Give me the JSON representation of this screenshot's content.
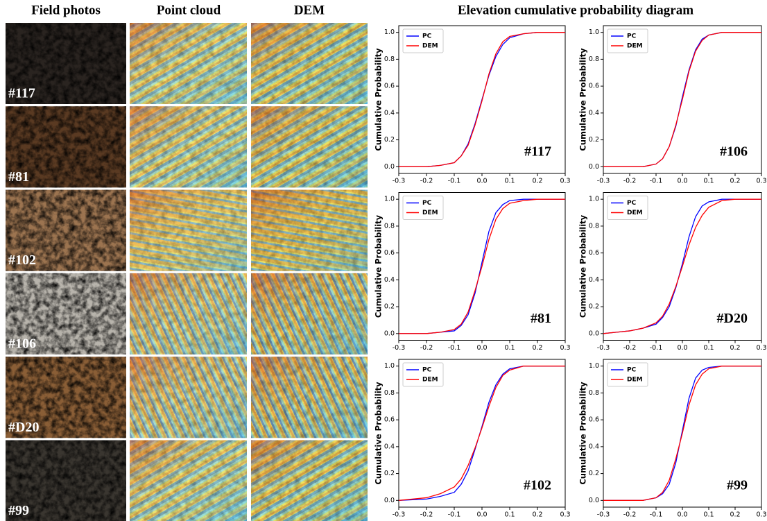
{
  "headers": [
    "Field photos",
    "Point cloud",
    "DEM",
    "Elevation cumulative probability diagram"
  ],
  "rows": [
    {
      "label": "#117"
    },
    {
      "label": "#81"
    },
    {
      "label": "#102"
    },
    {
      "label": "#106"
    },
    {
      "label": "#D20"
    },
    {
      "label": "#99"
    }
  ],
  "chart_data": [
    {
      "type": "line",
      "ylabel": "Cumulative Probability",
      "annotation": "#117",
      "x": [
        -0.3,
        -0.2,
        -0.15,
        -0.1,
        -0.075,
        -0.05,
        -0.025,
        0,
        0.025,
        0.05,
        0.075,
        0.1,
        0.15,
        0.2,
        0.3
      ],
      "series": [
        {
          "name": "PC",
          "color": "#0000ff",
          "values": [
            0,
            0,
            0.01,
            0.03,
            0.08,
            0.17,
            0.32,
            0.5,
            0.68,
            0.82,
            0.91,
            0.96,
            0.99,
            1,
            1
          ]
        },
        {
          "name": "DEM",
          "color": "#ff0000",
          "values": [
            0,
            0,
            0.01,
            0.03,
            0.08,
            0.16,
            0.31,
            0.49,
            0.69,
            0.84,
            0.93,
            0.97,
            0.99,
            1,
            1
          ]
        }
      ],
      "xlim": [
        -0.3,
        0.3
      ],
      "ylim": [
        -0.05,
        1.05
      ],
      "xticks": [
        -0.3,
        -0.2,
        -0.1,
        {
          "value": 0,
          "label": "0.0"
        },
        0.1,
        0.2,
        0.3
      ],
      "yticks": [
        {
          "value": 0,
          "label": "0.0"
        },
        0.2,
        0.4,
        0.6,
        0.8,
        {
          "value": 1,
          "label": "1.0"
        }
      ],
      "legend": "upper left"
    },
    {
      "type": "line",
      "ylabel": "Cumulative Probability",
      "annotation": "#106",
      "x": [
        -0.3,
        -0.2,
        -0.15,
        -0.1,
        -0.075,
        -0.05,
        -0.025,
        0,
        0.025,
        0.05,
        0.075,
        0.1,
        0.15,
        0.2,
        0.3
      ],
      "series": [
        {
          "name": "PC",
          "color": "#0000ff",
          "values": [
            0,
            0,
            0,
            0.02,
            0.06,
            0.15,
            0.3,
            0.52,
            0.72,
            0.87,
            0.95,
            0.98,
            1,
            1,
            1
          ]
        },
        {
          "name": "DEM",
          "color": "#ff0000",
          "values": [
            0,
            0,
            0,
            0.02,
            0.06,
            0.15,
            0.31,
            0.5,
            0.71,
            0.86,
            0.94,
            0.98,
            1,
            1,
            1
          ]
        }
      ],
      "xlim": [
        -0.3,
        0.3
      ],
      "ylim": [
        -0.05,
        1.05
      ],
      "xticks": [
        -0.3,
        -0.2,
        -0.1,
        {
          "value": 0,
          "label": "0.0"
        },
        0.1,
        0.2,
        0.3
      ],
      "yticks": [
        {
          "value": 0,
          "label": "0.0"
        },
        0.2,
        0.4,
        0.6,
        0.8,
        {
          "value": 1,
          "label": "1.0"
        }
      ],
      "legend": "upper left"
    },
    {
      "type": "line",
      "ylabel": "Cumulative Probability",
      "annotation": "#81",
      "x": [
        -0.3,
        -0.2,
        -0.15,
        -0.1,
        -0.075,
        -0.05,
        -0.025,
        0,
        0.025,
        0.05,
        0.075,
        0.1,
        0.15,
        0.2,
        0.3
      ],
      "series": [
        {
          "name": "PC",
          "color": "#0000ff",
          "values": [
            0,
            0,
            0.01,
            0.02,
            0.06,
            0.14,
            0.3,
            0.53,
            0.76,
            0.9,
            0.96,
            0.99,
            1,
            1,
            1
          ]
        },
        {
          "name": "DEM",
          "color": "#ff0000",
          "values": [
            0,
            0,
            0.01,
            0.03,
            0.07,
            0.16,
            0.32,
            0.5,
            0.7,
            0.85,
            0.93,
            0.97,
            0.99,
            1,
            1
          ]
        }
      ],
      "xlim": [
        -0.3,
        0.3
      ],
      "ylim": [
        -0.05,
        1.05
      ],
      "xticks": [
        -0.3,
        -0.2,
        -0.1,
        {
          "value": 0,
          "label": "0.0"
        },
        0.1,
        0.2,
        0.3
      ],
      "yticks": [
        {
          "value": 0,
          "label": "0.0"
        },
        0.2,
        0.4,
        0.6,
        0.8,
        {
          "value": 1,
          "label": "1.0"
        }
      ],
      "legend": "upper left"
    },
    {
      "type": "line",
      "ylabel": "Cumulative Probability",
      "annotation": "#D20",
      "x": [
        -0.3,
        -0.2,
        -0.15,
        -0.1,
        -0.075,
        -0.05,
        -0.025,
        0,
        0.025,
        0.05,
        0.075,
        0.1,
        0.15,
        0.2,
        0.3
      ],
      "series": [
        {
          "name": "PC",
          "color": "#0000ff",
          "values": [
            0,
            0.02,
            0.04,
            0.07,
            0.12,
            0.2,
            0.34,
            0.52,
            0.72,
            0.87,
            0.95,
            0.98,
            1,
            1,
            1
          ]
        },
        {
          "name": "DEM",
          "color": "#ff0000",
          "values": [
            0,
            0.02,
            0.04,
            0.08,
            0.13,
            0.22,
            0.35,
            0.5,
            0.66,
            0.79,
            0.88,
            0.94,
            0.99,
            1,
            1
          ]
        }
      ],
      "xlim": [
        -0.3,
        0.3
      ],
      "ylim": [
        -0.05,
        1.05
      ],
      "xticks": [
        -0.3,
        -0.2,
        -0.1,
        {
          "value": 0,
          "label": "0.0"
        },
        0.1,
        0.2,
        0.3
      ],
      "yticks": [
        {
          "value": 0,
          "label": "0.0"
        },
        0.2,
        0.4,
        0.6,
        0.8,
        {
          "value": 1,
          "label": "1.0"
        }
      ],
      "legend": "upper left"
    },
    {
      "type": "line",
      "ylabel": "Cumulative Probability",
      "annotation": "#102",
      "x": [
        -0.3,
        -0.2,
        -0.15,
        -0.1,
        -0.075,
        -0.05,
        -0.025,
        0,
        0.025,
        0.05,
        0.075,
        0.1,
        0.15,
        0.2,
        0.3
      ],
      "series": [
        {
          "name": "PC",
          "color": "#0000ff",
          "values": [
            0,
            0.01,
            0.03,
            0.06,
            0.12,
            0.22,
            0.38,
            0.55,
            0.73,
            0.86,
            0.94,
            0.98,
            1,
            1,
            1
          ]
        },
        {
          "name": "DEM",
          "color": "#ff0000",
          "values": [
            0,
            0.02,
            0.05,
            0.1,
            0.16,
            0.26,
            0.39,
            0.54,
            0.7,
            0.84,
            0.93,
            0.97,
            1,
            1,
            1
          ]
        }
      ],
      "xlim": [
        -0.3,
        0.3
      ],
      "ylim": [
        -0.05,
        1.05
      ],
      "xticks": [
        -0.3,
        -0.2,
        -0.1,
        {
          "value": 0,
          "label": "0.0"
        },
        0.1,
        0.2,
        0.3
      ],
      "yticks": [
        {
          "value": 0,
          "label": "0.0"
        },
        0.2,
        0.4,
        0.6,
        0.8,
        {
          "value": 1,
          "label": "1.0"
        }
      ],
      "legend": "upper left"
    },
    {
      "type": "line",
      "ylabel": "Cumulative Probability",
      "annotation": "#99",
      "x": [
        -0.3,
        -0.2,
        -0.15,
        -0.1,
        -0.075,
        -0.05,
        -0.025,
        0,
        0.025,
        0.05,
        0.075,
        0.1,
        0.15,
        0.2,
        0.3
      ],
      "series": [
        {
          "name": "PC",
          "color": "#0000ff",
          "values": [
            0,
            0,
            0,
            0.02,
            0.05,
            0.12,
            0.28,
            0.52,
            0.76,
            0.91,
            0.97,
            0.99,
            1,
            1,
            1
          ]
        },
        {
          "name": "DEM",
          "color": "#ff0000",
          "values": [
            0,
            0,
            0,
            0.02,
            0.06,
            0.15,
            0.31,
            0.5,
            0.71,
            0.86,
            0.94,
            0.98,
            1,
            1,
            1
          ]
        }
      ],
      "xlim": [
        -0.3,
        0.3
      ],
      "ylim": [
        -0.05,
        1.05
      ],
      "xticks": [
        -0.3,
        -0.2,
        -0.1,
        {
          "value": 0,
          "label": "0.0"
        },
        0.1,
        0.2,
        0.3
      ],
      "yticks": [
        {
          "value": 0,
          "label": "0.0"
        },
        0.2,
        0.4,
        0.6,
        0.8,
        {
          "value": 1,
          "label": "1.0"
        }
      ],
      "legend": "upper left"
    }
  ]
}
